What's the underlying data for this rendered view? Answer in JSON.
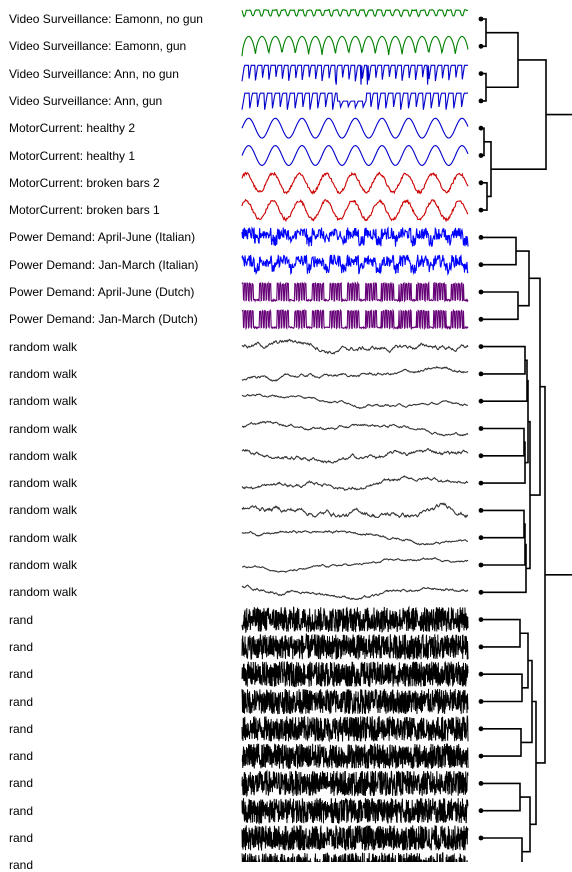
{
  "rows": [
    {
      "label": "Video Surveillance: Eamonn, no gun",
      "kind": "gun_flat",
      "color": "#008000"
    },
    {
      "label": "Video Surveillance: Eamonn, gun",
      "kind": "gun_spikes",
      "color": "#008000"
    },
    {
      "label": "Video Surveillance: Ann, no gun",
      "kind": "ann_flat",
      "color": "#0000cc"
    },
    {
      "label": "Video Surveillance: Ann, gun",
      "kind": "ann_spikes",
      "color": "#0000cc"
    },
    {
      "label": "MotorCurrent: healthy 2",
      "kind": "sine",
      "color": "#0000cc"
    },
    {
      "label": "MotorCurrent: healthy 1",
      "kind": "sine",
      "color": "#0000cc"
    },
    {
      "label": "MotorCurrent: broken bars 2",
      "kind": "sine_noisy",
      "color": "#cc0000"
    },
    {
      "label": "MotorCurrent: broken bars 1",
      "kind": "sine_noisy",
      "color": "#cc0000"
    },
    {
      "label": "Power Demand: April-June (Italian)",
      "kind": "power_it",
      "color": "#0000ff"
    },
    {
      "label": "Power Demand: Jan-March (Italian)",
      "kind": "power_it",
      "color": "#0000ff"
    },
    {
      "label": "Power Demand: April-June (Dutch)",
      "kind": "power_nl",
      "color": "#660077"
    },
    {
      "label": "Power Demand: Jan-March (Dutch)",
      "kind": "power_nl",
      "color": "#660077"
    },
    {
      "label": "random walk",
      "kind": "walk",
      "color": "#333333"
    },
    {
      "label": "random walk",
      "kind": "walk",
      "color": "#333333"
    },
    {
      "label": "random walk",
      "kind": "walk",
      "color": "#333333"
    },
    {
      "label": "random walk",
      "kind": "walk",
      "color": "#333333"
    },
    {
      "label": "random walk",
      "kind": "walk",
      "color": "#333333"
    },
    {
      "label": "random walk",
      "kind": "walk",
      "color": "#333333"
    },
    {
      "label": "random walk",
      "kind": "walk",
      "color": "#333333"
    },
    {
      "label": "random walk",
      "kind": "walk",
      "color": "#333333"
    },
    {
      "label": "random walk",
      "kind": "walk",
      "color": "#333333"
    },
    {
      "label": "random walk",
      "kind": "walk",
      "color": "#333333"
    },
    {
      "label": "rand",
      "kind": "rand",
      "color": "#000000"
    },
    {
      "label": "rand",
      "kind": "rand",
      "color": "#000000"
    },
    {
      "label": "rand",
      "kind": "rand",
      "color": "#000000"
    },
    {
      "label": "rand",
      "kind": "rand",
      "color": "#000000"
    },
    {
      "label": "rand",
      "kind": "rand",
      "color": "#000000"
    },
    {
      "label": "rand",
      "kind": "rand",
      "color": "#000000"
    },
    {
      "label": "rand",
      "kind": "rand",
      "color": "#000000"
    },
    {
      "label": "rand",
      "kind": "rand",
      "color": "#000000"
    },
    {
      "label": "rand",
      "kind": "rand",
      "color": "#000000"
    },
    {
      "label": "rand",
      "kind": "rand",
      "color": "#000000"
    }
  ],
  "dendrogram": {
    "line_color": "#000000",
    "clusters": [
      "video-surveillance",
      "motor-current",
      "power-demand",
      "random-walk",
      "rand"
    ]
  }
}
